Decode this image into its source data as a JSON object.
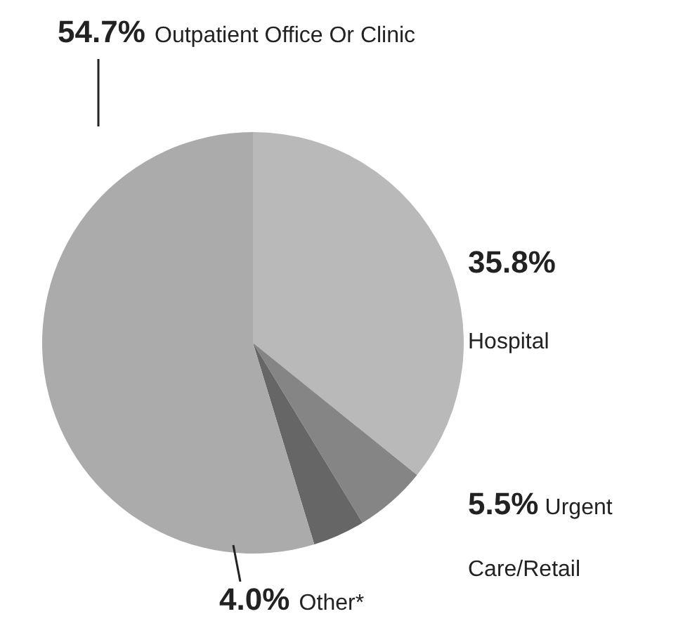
{
  "chart_data": {
    "type": "pie",
    "categories": [
      "Hospital",
      "Urgent Care/Retail",
      "Other*",
      "Outpatient Office Or Clinic"
    ],
    "values": [
      35.8,
      5.5,
      4.0,
      54.7
    ],
    "value_labels": [
      "35.8%",
      "5.5%",
      "4.0%",
      "54.7%"
    ],
    "colors": [
      "#b9b9b9",
      "#858585",
      "#666666",
      "#ababab"
    ]
  }
}
